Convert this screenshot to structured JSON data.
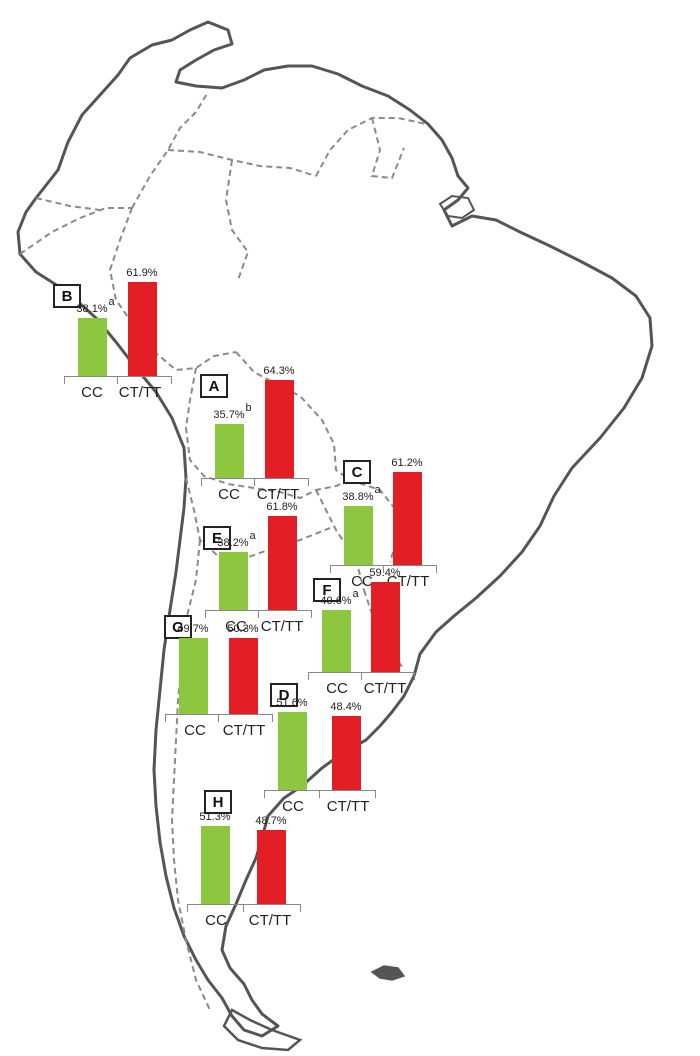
{
  "colors": {
    "cc": "#8dc63f",
    "ct_tt": "#e31e24",
    "coast": "#555555",
    "border": "#8a8a8a"
  },
  "chart_data": {
    "type": "bar",
    "categories": [
      "CC",
      "CT/TT"
    ],
    "regions": [
      {
        "id": "B",
        "label": "B",
        "values": [
          38.1,
          61.9
        ],
        "value_labels": [
          "38.1%",
          "61.9%"
        ],
        "sig": "a",
        "categories": [
          "CC",
          "CT/TT"
        ]
      },
      {
        "id": "A",
        "label": "A",
        "values": [
          35.7,
          64.3
        ],
        "value_labels": [
          "35.7%",
          "64.3%"
        ],
        "sig": "b",
        "categories": [
          "CC",
          "CT/TT"
        ]
      },
      {
        "id": "C",
        "label": "C",
        "values": [
          38.8,
          61.2
        ],
        "value_labels": [
          "38.8%",
          "61.2%"
        ],
        "sig": "a",
        "categories": [
          "CC",
          "CT/TT"
        ]
      },
      {
        "id": "E",
        "label": "E",
        "values": [
          38.2,
          61.8
        ],
        "value_labels": [
          "38.2%",
          "61.8%"
        ],
        "sig": "a",
        "categories": [
          "CC",
          "CT/TT"
        ]
      },
      {
        "id": "F",
        "label": "F",
        "values": [
          40.6,
          59.4
        ],
        "value_labels": [
          "40.6%",
          "59.4%"
        ],
        "sig": "a",
        "categories": [
          "CC",
          "CT/TT"
        ]
      },
      {
        "id": "G",
        "label": "G",
        "values": [
          49.7,
          50.3
        ],
        "value_labels": [
          "49.7%",
          "50.3%"
        ],
        "sig": "",
        "categories": [
          "CC",
          "CT/TT"
        ]
      },
      {
        "id": "D",
        "label": "D",
        "values": [
          51.6,
          48.4
        ],
        "value_labels": [
          "51.6%",
          "48.4%"
        ],
        "sig": "",
        "categories": [
          "CC",
          "CT/TT"
        ]
      },
      {
        "id": "H",
        "label": "H",
        "values": [
          51.3,
          48.7
        ],
        "value_labels": [
          "51.3%",
          "48.7%"
        ],
        "sig": "",
        "categories": [
          "CC",
          "CT/TT"
        ]
      }
    ]
  }
}
